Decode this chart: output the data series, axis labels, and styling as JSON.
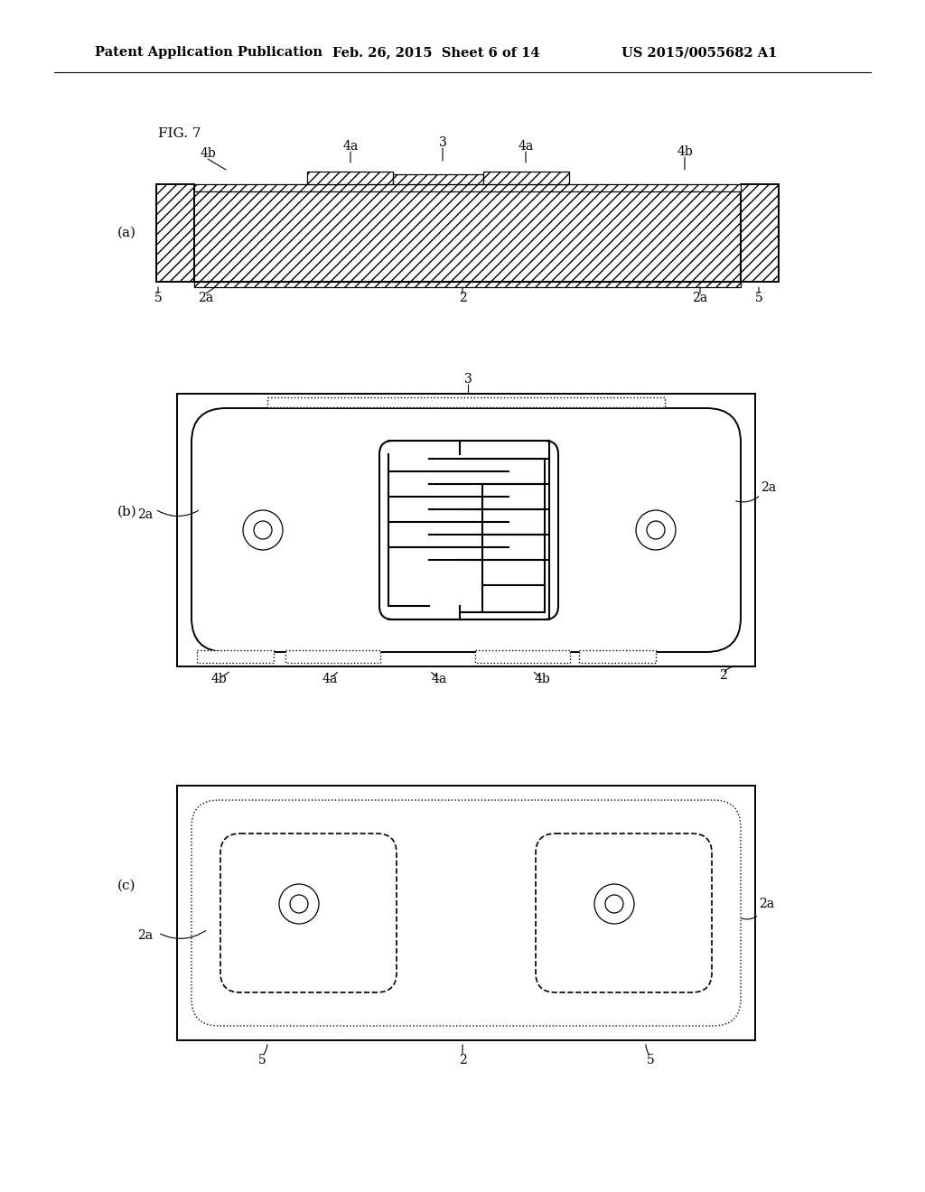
{
  "bg_color": "#ffffff",
  "header_left": "Patent Application Publication",
  "header_mid": "Feb. 26, 2015  Sheet 6 of 14",
  "header_right": "US 2015/0055682 A1",
  "fig_label": "FIG. 7"
}
